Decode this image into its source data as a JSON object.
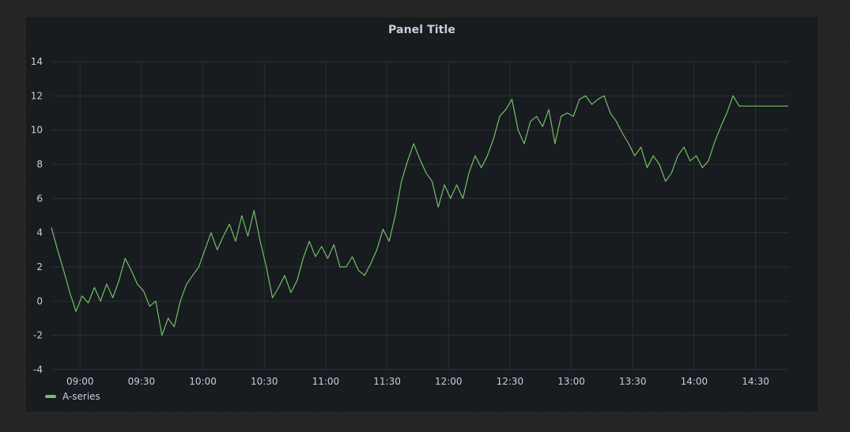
{
  "panel": {
    "title": "Panel Title"
  },
  "colors": {
    "series": "#73bf69",
    "grid": "#2c2f33",
    "text": "#ccccdc",
    "panel_bg": "#181b1f"
  },
  "chart_data": {
    "type": "line",
    "title": "Panel Title",
    "xlabel": "",
    "ylabel": "",
    "x_range": [
      "08:46",
      "14:46"
    ],
    "ylim": [
      -4,
      14
    ],
    "y_ticks": [
      -4,
      -2,
      0,
      2,
      4,
      6,
      8,
      10,
      12,
      14
    ],
    "x_ticks": [
      "09:00",
      "09:30",
      "10:00",
      "10:30",
      "11:00",
      "11:30",
      "12:00",
      "12:30",
      "13:00",
      "13:30",
      "14:00",
      "14:30"
    ],
    "grid": true,
    "legend_position": "bottom-left",
    "series": [
      {
        "name": "A-series",
        "x": [
          "08:46",
          "08:49",
          "08:52",
          "08:55",
          "08:58",
          "09:01",
          "09:04",
          "09:07",
          "09:10",
          "09:13",
          "09:16",
          "09:19",
          "09:22",
          "09:25",
          "09:28",
          "09:31",
          "09:34",
          "09:37",
          "09:40",
          "09:43",
          "09:46",
          "09:49",
          "09:52",
          "09:55",
          "09:58",
          "10:01",
          "10:04",
          "10:07",
          "10:10",
          "10:13",
          "10:16",
          "10:19",
          "10:22",
          "10:25",
          "10:28",
          "10:31",
          "10:34",
          "10:37",
          "10:40",
          "10:43",
          "10:46",
          "10:49",
          "10:52",
          "10:55",
          "10:58",
          "11:01",
          "11:04",
          "11:07",
          "11:10",
          "11:13",
          "11:16",
          "11:19",
          "11:22",
          "11:25",
          "11:28",
          "11:31",
          "11:34",
          "11:37",
          "11:40",
          "11:43",
          "11:46",
          "11:49",
          "11:52",
          "11:55",
          "11:58",
          "12:01",
          "12:04",
          "12:07",
          "12:10",
          "12:13",
          "12:16",
          "12:19",
          "12:22",
          "12:25",
          "12:28",
          "12:31",
          "12:34",
          "12:37",
          "12:40",
          "12:43",
          "12:46",
          "12:49",
          "12:52",
          "12:55",
          "12:58",
          "13:01",
          "13:04",
          "13:07",
          "13:10",
          "13:13",
          "13:16",
          "13:19",
          "13:22",
          "13:25",
          "13:28",
          "13:31",
          "13:34",
          "13:37",
          "13:40",
          "13:43",
          "13:46",
          "13:49",
          "13:52",
          "13:55",
          "13:58",
          "14:01",
          "14:04",
          "14:07",
          "14:10",
          "14:13",
          "14:16",
          "14:19",
          "14:22",
          "14:25",
          "14:28",
          "14:31",
          "14:34",
          "14:37",
          "14:40",
          "14:43",
          "14:46"
        ],
        "values": [
          4.3,
          3.0,
          1.8,
          0.5,
          -0.6,
          0.3,
          -0.1,
          0.8,
          0.0,
          1.0,
          0.2,
          1.2,
          2.5,
          1.8,
          1.0,
          0.6,
          -0.3,
          0.0,
          -2.0,
          -1.0,
          -1.5,
          0.0,
          1.0,
          1.5,
          2.0,
          3.0,
          4.0,
          3.0,
          3.8,
          4.5,
          3.5,
          5.0,
          3.8,
          5.3,
          3.5,
          2.0,
          0.2,
          0.8,
          1.5,
          0.5,
          1.2,
          2.5,
          3.5,
          2.6,
          3.2,
          2.5,
          3.3,
          2.0,
          2.0,
          2.6,
          1.8,
          1.5,
          2.2,
          3.0,
          4.2,
          3.5,
          5.0,
          7.0,
          8.2,
          9.2,
          8.3,
          7.5,
          7.0,
          5.5,
          6.8,
          6.0,
          6.8,
          6.0,
          7.5,
          8.5,
          7.8,
          8.5,
          9.5,
          10.8,
          11.2,
          11.8,
          10.0,
          9.2,
          10.5,
          10.8,
          10.2,
          11.2,
          9.2,
          10.8,
          11.0,
          10.8,
          11.8,
          12.0,
          11.5,
          11.8,
          12.0,
          11.0,
          10.5,
          9.8,
          9.2,
          8.5,
          9.0,
          7.8,
          8.5,
          8.0,
          7.0,
          7.5,
          8.5,
          9.0,
          8.2,
          8.5,
          7.8,
          8.2,
          9.3,
          10.2,
          11.0,
          12.0,
          11.4,
          11.4,
          11.4,
          11.4,
          11.4,
          11.4,
          11.4,
          11.4,
          11.4
        ]
      }
    ]
  },
  "legend": {
    "series_name": "A-series"
  }
}
